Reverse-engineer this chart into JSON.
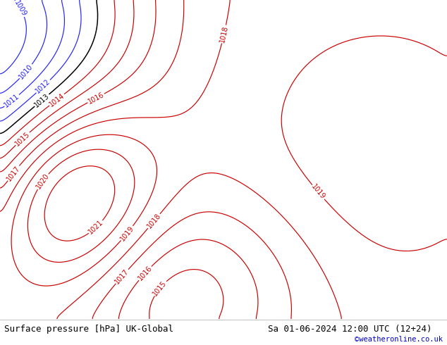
{
  "title_left": "Surface pressure [hPa] UK-Global",
  "title_right": "Sa 01-06-2024 12:00 UTC (12+24)",
  "copyright": "©weatheronline.co.uk",
  "bg_color": "#c8cce0",
  "land_color": "#b0d8a0",
  "border_color": "#1a1a1a",
  "footer_bg": "#ffffff",
  "footer_text_color": "#000000",
  "copyright_color": "#0000cc",
  "blue_contour_color": "#2222ff",
  "black_contour_color": "#000000",
  "red_contour_color": "#cc0000",
  "contour_label_fontsize": 7,
  "footer_fontsize": 9,
  "lon_min": -11,
  "lon_max": 40,
  "lat_min": 49,
  "lat_max": 75
}
